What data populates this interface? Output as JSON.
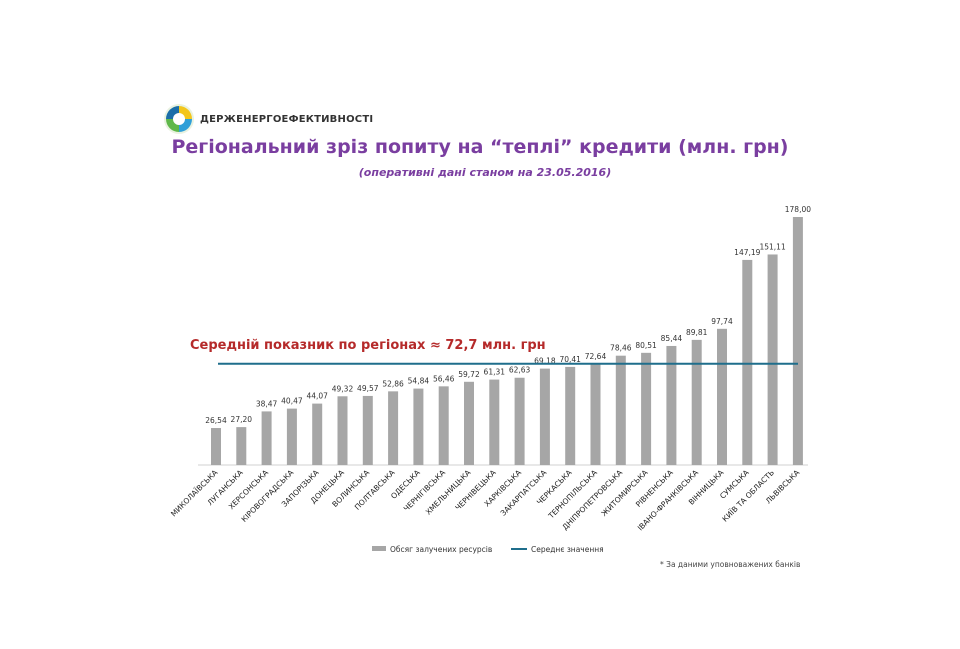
{
  "header": {
    "logo_text": "ДЕРЖЕНЕРГОЕФЕКТИВНОСТІ",
    "title": "Регіональний зріз попиту на “теплі” кредити (млн. грн)",
    "subtitle": "(оперативні дані станом на 23.05.2016)"
  },
  "average_label": "Середній показник по регіонах ≈ 72,7 млн. грн",
  "footnote": "* За даними уповноважених банків",
  "legend": {
    "bars": "Обсяг залучених ресурсів",
    "line": "Середнє значення"
  },
  "colors": {
    "bar": "#a6a6a6",
    "average_line": "#1f6e8c",
    "title": "#7a3ea0",
    "average_label": "#b52a2a"
  },
  "chart_data": {
    "type": "bar",
    "categories": [
      "МИКОЛАЇВСЬКА",
      "ЛУГАНСЬКА",
      "ХЕРСОНСЬКА",
      "КІРОВОГРАДСЬКА",
      "ЗАПОРІЗЬКА",
      "ДОНЕЦЬКА",
      "ВОЛИНСЬКА",
      "ПОЛТАВСЬКА",
      "ОДЕСЬКА",
      "ЧЕРНІГІВСЬКА",
      "ХМЕЛЬНИЦЬКА",
      "ЧЕРНІВЕЦЬКА",
      "ХАРКІВСЬКА",
      "ЗАКАРПАТСЬКА",
      "ЧЕРКАСЬКА",
      "ТЕРНОПІЛЬСЬКА",
      "ДНІПРОПЕТРОВСЬКА",
      "ЖИТОМИРСЬКА",
      "РІВНЕНСЬКА",
      "ІВАНО-ФРАНКІВСЬКА",
      "ВІННИЦЬКА",
      "СУМСЬКА",
      "КИЇВ ТА ОБЛАСТЬ",
      "ЛЬВІВСЬКА"
    ],
    "series": [
      {
        "name": "Обсяг залучених ресурсів",
        "values": [
          26.54,
          27.2,
          38.47,
          40.47,
          44.07,
          49.32,
          49.57,
          52.86,
          54.84,
          56.46,
          59.72,
          61.31,
          62.63,
          69.18,
          70.41,
          72.64,
          78.46,
          80.51,
          85.44,
          89.81,
          97.74,
          147.19,
          151.11,
          178.0
        ],
        "labels": [
          "26,54",
          "27,20",
          "38,47",
          "40,47",
          "44,07",
          "49,32",
          "49,57",
          "52,86",
          "54,84",
          "56,46",
          "59,72",
          "61,31",
          "62,63",
          "69,18",
          "70,41",
          "72,64",
          "78,46",
          "80,51",
          "85,44",
          "89,81",
          "97,74",
          "147,19",
          "151,11",
          "178,00"
        ]
      },
      {
        "name": "Середнє значення",
        "value": 72.7
      }
    ],
    "ylim": [
      0,
      178
    ],
    "grid": false,
    "legend_position": "bottom"
  }
}
